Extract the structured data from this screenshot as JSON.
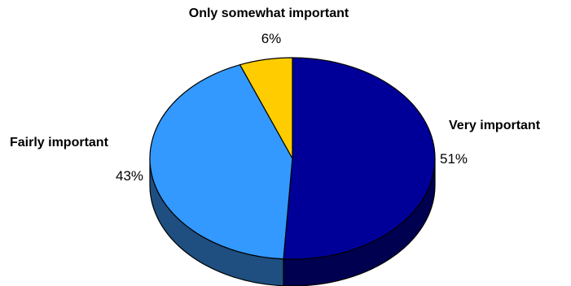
{
  "chart_data": {
    "type": "pie",
    "title": "",
    "categories": [
      "Very important",
      "Fairly important",
      "Only somewhat important"
    ],
    "values": [
      51,
      43,
      6
    ],
    "value_labels": [
      "51%",
      "43%",
      "6%"
    ],
    "colors": [
      "#000099",
      "#3399FF",
      "#FFCC00"
    ],
    "side_colors": [
      "#000050",
      "#1E4F80",
      "#8A6E00"
    ],
    "legend": "none",
    "style": "3d-tilted",
    "start_position": "top",
    "direction": "clockwise"
  }
}
